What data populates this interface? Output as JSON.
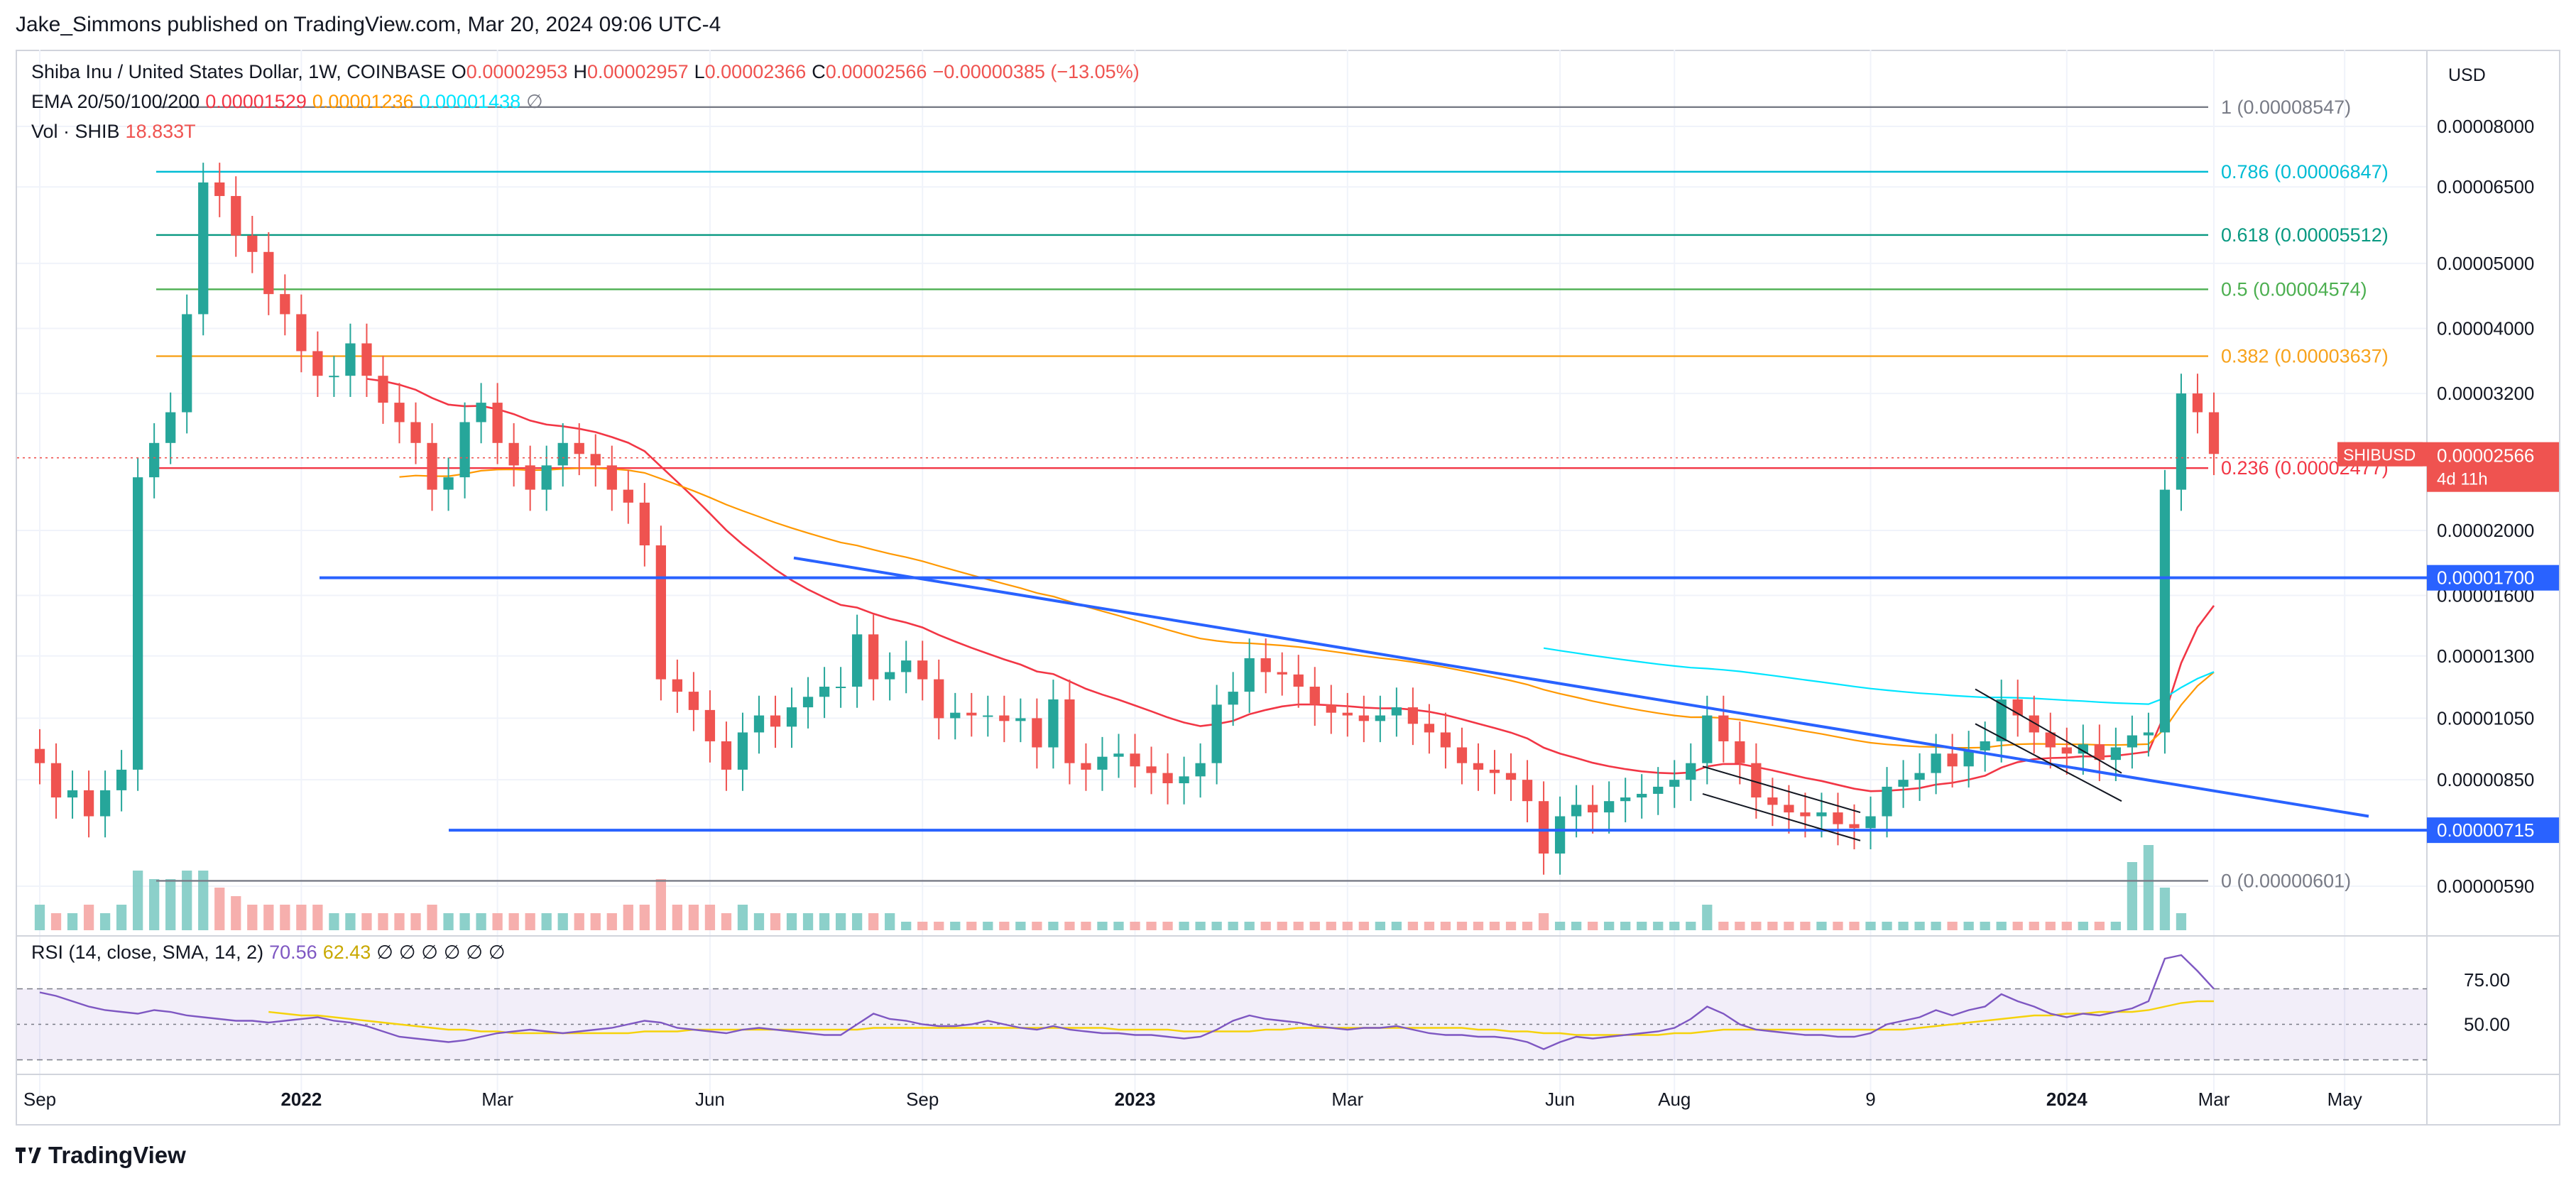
{
  "header": {
    "published_line": "Jake_Simmons published on TradingView.com, Mar 20, 2024 09:06 UTC-4"
  },
  "footer": {
    "brand": "TradingView"
  },
  "legend": {
    "symbol_line": "Shiba Inu / United States Dollar, 1W, COINBASE",
    "o_label": "O",
    "o_value": "0.00002953",
    "h_label": "H",
    "h_value": "0.00002957",
    "l_label": "L",
    "l_value": "0.00002366",
    "c_label": "C",
    "c_value": "0.00002566",
    "change": "−0.00000385 (−13.05%)",
    "ema_label": "EMA 20/50/100/200",
    "ema20": "0.00001529",
    "ema50": "0.00001236",
    "ema100": "0.00001438",
    "ema200": "∅",
    "vol_label": "Vol · SHIB",
    "vol_value": "18.833T",
    "rsi_label": "RSI (14, close, SMA, 14, 2)",
    "rsi_value": "70.56",
    "rsi_sma": "62.43",
    "rsi_empty": [
      "∅",
      "∅",
      "∅",
      "∅",
      "∅",
      "∅"
    ]
  },
  "currency": "USD",
  "colors": {
    "up": "#26a69a",
    "down": "#ef5350",
    "ema20": "#f23645",
    "ema50": "#ff9800",
    "ema100": "#00e5ff",
    "blue_line": "#2962ff",
    "rsi": "#7e57c2",
    "rsi_sma": "#f5d20b"
  },
  "chart_data": {
    "type": "candlestick",
    "symbol": "SHIBUSD",
    "timeframe": "1W",
    "price_axis_ticks": [
      "0.00008000",
      "0.00006500",
      "0.00005000",
      "0.00004000",
      "0.00003200",
      "0.00002000",
      "0.00001600",
      "0.00001300",
      "0.00001050",
      "0.00000850",
      "0.00000590"
    ],
    "price_tick_values": [
      8e-05,
      6.5e-05,
      5e-05,
      4e-05,
      3.2e-05,
      2e-05,
      1.6e-05,
      1.3e-05,
      1.05e-05,
      8.5e-06,
      5.9e-06
    ],
    "time_axis_labels": [
      "Sep",
      "2022",
      "Mar",
      "Jun",
      "Sep",
      "2023",
      "Mar",
      "Jun",
      "Aug",
      "9",
      "2024",
      "Mar",
      "May"
    ],
    "current_price": {
      "label": "SHIBUSD",
      "value": "0.00002566",
      "countdown": "4d 11h"
    },
    "horizontal_levels": [
      {
        "label": "0.00001700",
        "value": 1.7e-05
      },
      {
        "label": "0.00000715",
        "value": 7.15e-06
      }
    ],
    "fibonacci": [
      {
        "text": "1 (0.00008547)",
        "value": 8.547e-05,
        "color": "#787b86"
      },
      {
        "text": "0.786 (0.00006847)",
        "value": 6.847e-05,
        "color": "#00bcd4"
      },
      {
        "text": "0.618 (0.00005512)",
        "value": 5.512e-05,
        "color": "#089981"
      },
      {
        "text": "0.5 (0.00004574)",
        "value": 4.574e-05,
        "color": "#4caf50"
      },
      {
        "text": "0.382 (0.00003637)",
        "value": 3.637e-05,
        "color": "#f7a21b"
      },
      {
        "text": "0.236 (0.00002477)",
        "value": 2.477e-05,
        "color": "#f23645"
      },
      {
        "text": "0 (0.00000601)",
        "value": 6.01e-06,
        "color": "#787b86"
      }
    ],
    "rsi_levels": [
      "75.00",
      "50.00"
    ],
    "rsi_level_values": [
      75,
      50
    ],
    "rsi_band": [
      30,
      70
    ],
    "candles_close": [
      9e-06,
      8e-06,
      8.2e-06,
      7.5e-06,
      8.2e-06,
      8.8e-06,
      2.4e-05,
      2.7e-05,
      3e-05,
      4.2e-05,
      6.6e-05,
      6.3e-05,
      5.5e-05,
      5.2e-05,
      4.5e-05,
      4.2e-05,
      3.7e-05,
      3.4e-05,
      3.4e-05,
      3.8e-05,
      3.4e-05,
      3.1e-05,
      2.9e-05,
      2.7e-05,
      2.3e-05,
      2.4e-05,
      2.9e-05,
      3.1e-05,
      2.7e-05,
      2.5e-05,
      2.3e-05,
      2.5e-05,
      2.7e-05,
      2.6e-05,
      2.5e-05,
      2.3e-05,
      2.2e-05,
      1.9e-05,
      1.2e-05,
      1.15e-05,
      1.08e-05,
      9.7e-06,
      8.8e-06,
      1e-05,
      1.06e-05,
      1.02e-05,
      1.09e-05,
      1.13e-05,
      1.17e-05,
      1.17e-05,
      1.4e-05,
      1.2e-05,
      1.23e-05,
      1.28e-05,
      1.2e-05,
      1.05e-05,
      1.07e-05,
      1.06e-05,
      1.06e-05,
      1.04e-05,
      1.05e-05,
      9.5e-06,
      1.12e-05,
      9e-06,
      8.8e-06,
      9.2e-06,
      9.3e-06,
      8.9e-06,
      8.7e-06,
      8.4e-06,
      8.6e-06,
      9e-06,
      1.1e-05,
      1.15e-05,
      1.29e-05,
      1.23e-05,
      1.22e-05,
      1.17e-05,
      1.1e-05,
      1.07e-05,
      1.06e-05,
      1.04e-05,
      1.06e-05,
      1.09e-05,
      1.03e-05,
      1e-05,
      9.5e-06,
      9e-06,
      8.8e-06,
      8.7e-06,
      8.5e-06,
      7.9e-06,
      6.6e-06,
      7.5e-06,
      7.8e-06,
      7.6e-06,
      7.9e-06,
      8e-06,
      8.1e-06,
      8.3e-06,
      8.5e-06,
      9e-06,
      1.06e-05,
      9.7e-06,
      9e-06,
      8e-06,
      7.8e-06,
      7.6e-06,
      7.5e-06,
      7.6e-06,
      7.3e-06,
      7.2e-06,
      7.5e-06,
      8.3e-06,
      8.5e-06,
      8.7e-06,
      9.3e-06,
      8.9e-06,
      9.4e-06,
      9.7e-06,
      1.12e-05,
      1.06e-05,
      1e-05,
      9.5e-06,
      9.3e-06,
      9.6e-06,
      9.1e-06,
      9.5e-06,
      9.9e-06,
      1e-05,
      2.3e-05,
      3.2e-05,
      3e-05,
      2.6e-05
    ],
    "volume_relative": [
      0.3,
      0.2,
      0.2,
      0.3,
      0.2,
      0.3,
      0.7,
      0.6,
      0.6,
      0.7,
      0.7,
      0.5,
      0.4,
      0.3,
      0.3,
      0.3,
      0.3,
      0.3,
      0.2,
      0.2,
      0.2,
      0.2,
      0.2,
      0.2,
      0.3,
      0.2,
      0.2,
      0.2,
      0.2,
      0.2,
      0.2,
      0.2,
      0.2,
      0.2,
      0.2,
      0.2,
      0.3,
      0.3,
      0.6,
      0.3,
      0.3,
      0.3,
      0.2,
      0.3,
      0.2,
      0.2,
      0.2,
      0.2,
      0.2,
      0.2,
      0.2,
      0.2,
      0.2,
      0.1,
      0.1,
      0.1,
      0.1,
      0.1,
      0.1,
      0.1,
      0.1,
      0.1,
      0.1,
      0.1,
      0.1,
      0.1,
      0.1,
      0.1,
      0.1,
      0.1,
      0.1,
      0.1,
      0.1,
      0.1,
      0.1,
      0.1,
      0.1,
      0.1,
      0.1,
      0.1,
      0.1,
      0.1,
      0.1,
      0.1,
      0.1,
      0.1,
      0.1,
      0.1,
      0.1,
      0.1,
      0.1,
      0.1,
      0.2,
      0.1,
      0.1,
      0.1,
      0.1,
      0.1,
      0.1,
      0.1,
      0.1,
      0.1,
      0.3,
      0.1,
      0.1,
      0.1,
      0.1,
      0.1,
      0.1,
      0.1,
      0.1,
      0.1,
      0.1,
      0.1,
      0.1,
      0.1,
      0.1,
      0.1,
      0.1,
      0.1,
      0.1,
      0.1,
      0.1,
      0.1,
      0.1,
      0.1,
      0.1,
      0.1,
      0.8,
      1.0,
      0.5,
      0.2
    ],
    "rsi_values": [
      68,
      66,
      63,
      60,
      58,
      57,
      56,
      58,
      57,
      55,
      54,
      53,
      52,
      52,
      51,
      52,
      53,
      54,
      52,
      51,
      49,
      46,
      43,
      42,
      41,
      40,
      41,
      43,
      45,
      46,
      47,
      46,
      45,
      46,
      47,
      48,
      50,
      52,
      51,
      48,
      47,
      46,
      45,
      47,
      48,
      47,
      46,
      45,
      44,
      44,
      50,
      56,
      53,
      52,
      50,
      49,
      49,
      50,
      52,
      50,
      48,
      47,
      49,
      47,
      46,
      45,
      45,
      44,
      44,
      43,
      42,
      43,
      47,
      52,
      55,
      53,
      52,
      51,
      49,
      48,
      47,
      48,
      48,
      49,
      47,
      45,
      44,
      44,
      43,
      43,
      42,
      40,
      36,
      40,
      43,
      42,
      43,
      44,
      45,
      46,
      48,
      53,
      60,
      56,
      50,
      47,
      46,
      45,
      44,
      44,
      43,
      43,
      45,
      50,
      52,
      54,
      58,
      55,
      58,
      60,
      67,
      63,
      60,
      56,
      54,
      56,
      55,
      57,
      59,
      63,
      87,
      89,
      80,
      70
    ],
    "rsi_sma_values": [
      null,
      null,
      null,
      null,
      null,
      null,
      null,
      null,
      null,
      null,
      null,
      null,
      null,
      null,
      57,
      56,
      55,
      55,
      54,
      53,
      52,
      51,
      50,
      49,
      48,
      47,
      47,
      46,
      46,
      45,
      45,
      45,
      45,
      45,
      45,
      45,
      45,
      46,
      46,
      46,
      47,
      47,
      47,
      47,
      47,
      47,
      47,
      47,
      47,
      47,
      47,
      48,
      48,
      48,
      48,
      48,
      48,
      48,
      48,
      48,
      48,
      48,
      48,
      48,
      48,
      48,
      47,
      47,
      47,
      47,
      46,
      46,
      46,
      46,
      46,
      47,
      47,
      48,
      48,
      48,
      48,
      48,
      48,
      48,
      48,
      48,
      48,
      48,
      47,
      47,
      46,
      46,
      45,
      45,
      44,
      44,
      44,
      44,
      44,
      44,
      45,
      45,
      46,
      47,
      47,
      47,
      47,
      47,
      47,
      47,
      47,
      47,
      47,
      47,
      47,
      48,
      49,
      50,
      51,
      52,
      53,
      54,
      55,
      55,
      56,
      56,
      57,
      57,
      57,
      58,
      60,
      62,
      63,
      63
    ]
  }
}
